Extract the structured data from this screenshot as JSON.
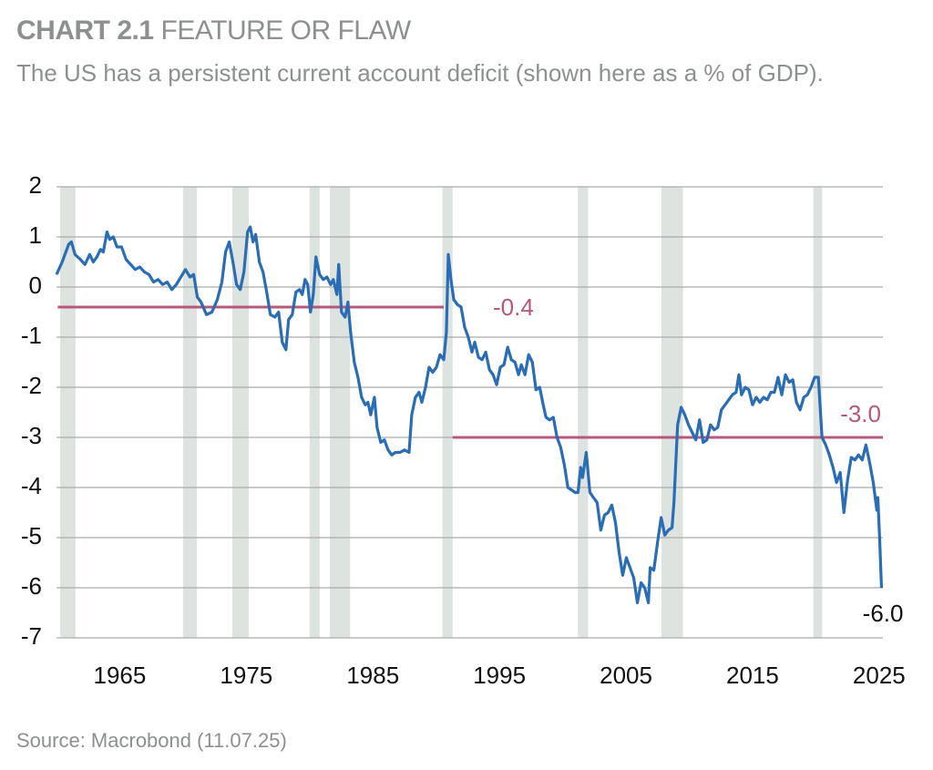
{
  "chart_data": {
    "type": "line",
    "title_label": "CHART 2.1",
    "title": "FEATURE OR FLAW",
    "subtitle": "The US has a persistent current account deficit (shown here as a % of GDP).",
    "source": "Source: Macrobond (11.07.25)",
    "line_color": "#2a6db5",
    "x": [
      1960.0,
      1960.45,
      1960.96,
      1961.18,
      1961.46,
      1961.89,
      1962.25,
      1962.62,
      1962.91,
      1963.19,
      1963.48,
      1963.7,
      1963.99,
      1964.2,
      1964.49,
      1964.78,
      1965.14,
      1965.5,
      1965.86,
      1966.22,
      1966.58,
      1966.95,
      1967.31,
      1967.67,
      1968.03,
      1968.39,
      1968.75,
      1969.11,
      1969.47,
      1969.83,
      1970.19,
      1970.55,
      1970.84,
      1971.13,
      1971.42,
      1971.85,
      1972.28,
      1972.71,
      1973.07,
      1973.36,
      1973.65,
      1973.94,
      1974.23,
      1974.52,
      1974.81,
      1975.1,
      1975.31,
      1975.53,
      1975.74,
      1976.03,
      1976.32,
      1976.61,
      1976.9,
      1977.26,
      1977.55,
      1977.84,
      1978.13,
      1978.34,
      1978.63,
      1978.92,
      1979.21,
      1979.42,
      1979.64,
      1979.85,
      1980.07,
      1980.29,
      1980.5,
      1980.79,
      1981.08,
      1981.37,
      1981.66,
      1981.87,
      1982.16,
      1982.3,
      1982.52,
      1982.81,
      1983.03,
      1983.24,
      1983.53,
      1983.82,
      1984.11,
      1984.4,
      1984.61,
      1984.83,
      1985.12,
      1985.33,
      1985.62,
      1985.91,
      1986.2,
      1986.49,
      1986.78,
      1987.14,
      1987.5,
      1987.86,
      1988.07,
      1988.36,
      1988.65,
      1988.87,
      1989.16,
      1989.44,
      1989.73,
      1990.02,
      1990.31,
      1990.6,
      1990.81,
      1990.96,
      1991.17,
      1991.39,
      1991.68,
      1991.97,
      1992.25,
      1992.54,
      1992.83,
      1993.05,
      1993.34,
      1993.63,
      1993.92,
      1994.21,
      1994.5,
      1994.78,
      1995.07,
      1995.36,
      1995.65,
      1995.94,
      1996.23,
      1996.51,
      1996.73,
      1997.02,
      1997.31,
      1997.6,
      1997.89,
      1998.18,
      1998.46,
      1998.68,
      1998.97,
      1999.26,
      1999.55,
      1999.84,
      2000.13,
      2000.41,
      2000.7,
      2000.99,
      2001.21,
      2001.42,
      2001.57,
      2001.86,
      2002.15,
      2002.43,
      2002.72,
      2003.01,
      2003.3,
      2003.59,
      2003.88,
      2004.17,
      2004.46,
      2004.74,
      2005.03,
      2005.32,
      2005.61,
      2005.9,
      2006.19,
      2006.48,
      2006.77,
      2006.91,
      2007.2,
      2007.49,
      2007.78,
      2008.07,
      2008.35,
      2008.64,
      2008.79,
      2009.08,
      2009.36,
      2009.65,
      2009.94,
      2010.23,
      2010.52,
      2010.81,
      2011.1,
      2011.39,
      2011.68,
      2011.97,
      2012.25,
      2012.54,
      2012.83,
      2013.12,
      2013.41,
      2013.7,
      2013.92,
      2014.13,
      2014.42,
      2014.71,
      2015.0,
      2015.29,
      2015.58,
      2015.87,
      2016.16,
      2016.45,
      2016.73,
      2017.02,
      2017.31,
      2017.6,
      2017.89,
      2018.18,
      2018.47,
      2018.76,
      2019.05,
      2019.33,
      2019.62,
      2019.91,
      2020.2,
      2020.49,
      2020.78,
      2021.07,
      2021.36,
      2021.64,
      2021.93,
      2022.22,
      2022.51,
      2022.8,
      2023.09,
      2023.38,
      2023.67,
      2023.96,
      2024.25,
      2024.54,
      2024.82,
      2024.9,
      2025.04,
      2025.19
    ],
    "values": [
      0.25,
      0.5,
      0.85,
      0.9,
      0.65,
      0.55,
      0.45,
      0.65,
      0.5,
      0.6,
      0.75,
      0.7,
      1.1,
      0.95,
      1.0,
      0.8,
      0.8,
      0.55,
      0.45,
      0.35,
      0.4,
      0.3,
      0.25,
      0.1,
      0.15,
      0.05,
      0.1,
      -0.05,
      0.05,
      0.2,
      0.35,
      0.2,
      0.25,
      -0.2,
      -0.3,
      -0.55,
      -0.5,
      -0.25,
      0.1,
      0.7,
      0.9,
      0.5,
      0.05,
      -0.05,
      0.3,
      1.1,
      1.2,
      0.9,
      1.05,
      0.5,
      0.3,
      -0.1,
      -0.55,
      -0.6,
      -0.5,
      -1.1,
      -1.25,
      -0.65,
      -0.55,
      -0.1,
      -0.05,
      -0.15,
      0.15,
      0.05,
      -0.5,
      -0.15,
      0.6,
      0.25,
      0.15,
      0.2,
      0.05,
      0.15,
      -0.15,
      0.45,
      -0.5,
      -0.6,
      -0.3,
      -0.9,
      -1.5,
      -1.8,
      -2.2,
      -2.35,
      -2.3,
      -2.55,
      -2.2,
      -2.8,
      -3.1,
      -3.05,
      -3.25,
      -3.35,
      -3.3,
      -3.3,
      -3.25,
      -3.3,
      -2.55,
      -2.2,
      -2.1,
      -2.3,
      -2.0,
      -1.6,
      -1.7,
      -1.6,
      -1.35,
      -1.45,
      -0.9,
      0.65,
      0.15,
      -0.25,
      -0.35,
      -0.4,
      -0.8,
      -1.0,
      -1.3,
      -1.1,
      -1.4,
      -1.45,
      -1.3,
      -1.65,
      -1.75,
      -1.95,
      -1.6,
      -1.55,
      -1.2,
      -1.45,
      -1.5,
      -1.75,
      -1.55,
      -1.75,
      -1.35,
      -1.5,
      -2.05,
      -2.0,
      -2.35,
      -2.6,
      -2.65,
      -2.6,
      -3.0,
      -3.2,
      -3.55,
      -4.0,
      -4.05,
      -4.1,
      -4.1,
      -3.6,
      -3.8,
      -3.3,
      -4.1,
      -4.2,
      -4.3,
      -4.85,
      -4.55,
      -4.5,
      -4.35,
      -4.7,
      -5.3,
      -5.75,
      -5.4,
      -5.6,
      -5.8,
      -6.3,
      -5.9,
      -6.0,
      -6.3,
      -5.6,
      -5.65,
      -5.1,
      -4.6,
      -4.95,
      -4.85,
      -4.8,
      -4.3,
      -2.75,
      -2.4,
      -2.55,
      -2.75,
      -2.9,
      -3.05,
      -2.65,
      -3.1,
      -3.05,
      -2.75,
      -2.85,
      -2.8,
      -2.45,
      -2.35,
      -2.25,
      -2.15,
      -2.1,
      -1.75,
      -2.15,
      -2.0,
      -2.05,
      -2.35,
      -2.2,
      -2.3,
      -2.2,
      -2.25,
      -2.1,
      -2.1,
      -1.8,
      -2.15,
      -1.75,
      -1.9,
      -1.85,
      -2.3,
      -2.45,
      -2.2,
      -2.15,
      -2.0,
      -1.8,
      -1.8,
      -3.0,
      -3.15,
      -3.35,
      -3.6,
      -3.9,
      -3.7,
      -4.5,
      -3.85,
      -3.4,
      -3.45,
      -3.35,
      -3.45,
      -3.15,
      -3.5,
      -3.9,
      -4.45,
      -4.2,
      -5.0,
      -6.0
    ],
    "last_value_label": "-6.0",
    "shaded_periods": [
      [
        1960.3,
        1961.5
      ],
      [
        1970.0,
        1971.1
      ],
      [
        1973.9,
        1975.2
      ],
      [
        1980.0,
        1980.8
      ],
      [
        1981.6,
        1983.2
      ],
      [
        1990.5,
        1991.3
      ],
      [
        2001.2,
        2002.0
      ],
      [
        2007.8,
        2009.5
      ],
      [
        2019.8,
        2020.5
      ]
    ],
    "shade_color": "#dde3df",
    "reference_lines": [
      {
        "value": -0.4,
        "label": "-0.4",
        "x": [
          1960.1,
          1990.6
        ]
      },
      {
        "value": -3.0,
        "label": "-3.0",
        "x": [
          1991.3,
          2025.3
        ]
      }
    ],
    "reference_color": "#b8577a",
    "xlim": [
      1960,
      2025.3
    ],
    "xticks": [
      1965,
      1975,
      1985,
      1995,
      2005,
      2015,
      2025
    ],
    "ylim": [
      -7,
      2
    ],
    "yticks": [
      -7,
      -6,
      -5,
      -4,
      -3,
      -2,
      -1,
      0,
      1,
      2
    ],
    "grid": true
  }
}
